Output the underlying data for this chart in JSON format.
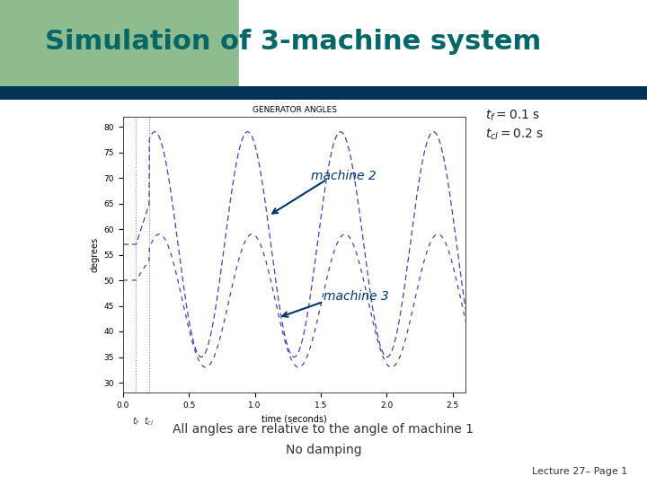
{
  "title": "Simulation of 3-machine system",
  "title_color": "#006666",
  "title_bg_left": "#8fbc8f",
  "title_bg_right": "#ffffff",
  "nav_bar_color": "#003355",
  "plot_title": "GENERATOR ANGLES",
  "xlabel": "time (seconds)",
  "ylabel": "degrees",
  "xlim": [
    0,
    2.6
  ],
  "ylim": [
    28,
    82
  ],
  "yticks": [
    30,
    35,
    40,
    45,
    50,
    55,
    60,
    65,
    70,
    75,
    80
  ],
  "xticks": [
    0,
    0.5,
    1.0,
    1.5,
    2.0,
    2.5
  ],
  "tf": 0.1,
  "tcl": 0.2,
  "bottom_text1": "All angles are relative to the angle of machine 1",
  "bottom_text2": "No damping",
  "lecture_text": "Lecture 27– Page 1",
  "bg_color": "#ffffff",
  "plot_bg": "#ffffff",
  "line_color": "#4444aa",
  "font_color": "#333333",
  "machine2_label": "machine 2",
  "machine3_label": "machine 3",
  "tf_label": "$t_f = 0.1$ s",
  "tcl_label": "$t_{cl} = 0.2$ s",
  "tf_tick": "$t_f$",
  "tcl_tick": "$t_{cl}$"
}
